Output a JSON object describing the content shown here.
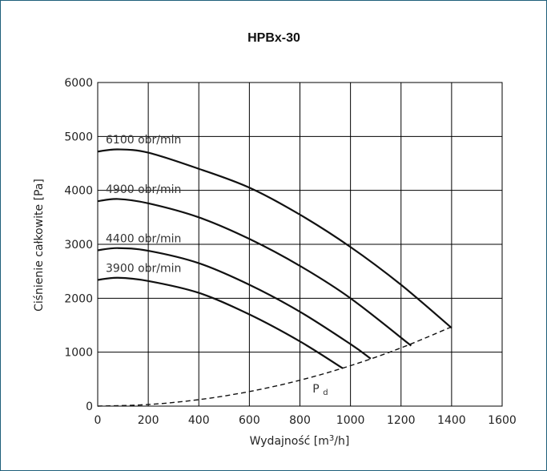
{
  "colors": {
    "frame": "#1f5f7a",
    "grid": "#000000",
    "curves": "#111111"
  },
  "chart_data": {
    "type": "line",
    "title": "HPBx-30",
    "xlabel": "Wydajność [m",
    "xlabel_sup": "3",
    "xlabel_suffix": "/h]",
    "ylabel": "Ciśnienie całkowite [Pa]",
    "xlim": [
      0,
      1600
    ],
    "ylim": [
      0,
      6000
    ],
    "xticks": [
      0,
      200,
      400,
      600,
      800,
      1000,
      1200,
      1400,
      1600
    ],
    "yticks": [
      0,
      1000,
      2000,
      3000,
      4000,
      5000,
      6000
    ],
    "xtick_labels": [
      "0",
      "200",
      "400",
      "600",
      "800",
      "1000",
      "1200",
      "1400",
      "1600"
    ],
    "ytick_labels": [
      "0",
      "1000",
      "2000",
      "3000",
      "4000",
      "5000",
      "6000"
    ],
    "grid": true,
    "series": [
      {
        "name": "6100 obr/min",
        "x": [
          0,
          80,
          200,
          400,
          600,
          800,
          1000,
          1200,
          1400
        ],
        "y": [
          4720,
          4760,
          4700,
          4400,
          4050,
          3550,
          2950,
          2250,
          1450
        ]
      },
      {
        "name": "4900 obr/min",
        "x": [
          0,
          80,
          200,
          400,
          600,
          800,
          1000,
          1240
        ],
        "y": [
          3800,
          3840,
          3760,
          3500,
          3100,
          2600,
          2000,
          1120
        ]
      },
      {
        "name": "4400 obr/min",
        "x": [
          0,
          80,
          200,
          400,
          600,
          800,
          1000,
          1080
        ],
        "y": [
          2890,
          2930,
          2880,
          2650,
          2250,
          1750,
          1150,
          880
        ]
      },
      {
        "name": "3900 obr/min",
        "x": [
          0,
          80,
          200,
          400,
          600,
          800,
          970
        ],
        "y": [
          2340,
          2380,
          2320,
          2100,
          1700,
          1200,
          700
        ]
      }
    ],
    "dynamic_pressure": {
      "name": "P",
      "subscript": "d",
      "x": [
        0,
        200,
        400,
        600,
        800,
        1000,
        1200,
        1400
      ],
      "y": [
        0,
        30,
        120,
        270,
        480,
        750,
        1080,
        1470
      ]
    }
  }
}
